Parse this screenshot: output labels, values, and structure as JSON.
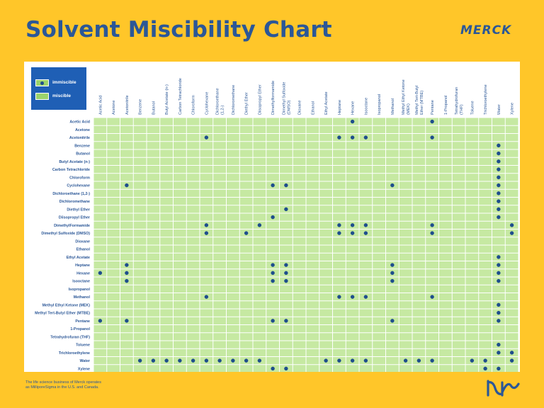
{
  "title": "Solvent Miscibility Chart",
  "brand": "Merck",
  "legend": {
    "immiscible": "immiscible",
    "miscible": "miscible"
  },
  "footer": "The life science business of Merck operates as MilliporeSigma in the U.S. and Canada.",
  "colors": {
    "background": "#FFC629",
    "title": "#2B5797",
    "cell": "#C6E9A2",
    "dot": "#1E4E8C",
    "legend_box": "#1F5FB5"
  },
  "chart_data": {
    "type": "heatmap",
    "columns": [
      "Acetic Acid",
      "Acetone",
      "Acetonitrile",
      "Benzene",
      "Butanol",
      "Butyl Acetate (n-)",
      "Carbon Tetrachloride",
      "Chloroform",
      "Cyclohexane",
      "Dichloroethane (1,2-)",
      "Dichloromethane",
      "Diethyl Ether",
      "Diisopropyl Ether",
      "Dimethylformamide",
      "Dimethyl Sulfoxide (DMSO)",
      "Dioxane",
      "Ethanol",
      "Ethyl Acetate",
      "Heptane",
      "Hexane",
      "Isooctane",
      "Isopropanol",
      "Methanol",
      "Methyl Ethyl Ketone (MEK)",
      "Methyl Tert-Butyl Ether (MTBE)",
      "Pentane",
      "1-Propanol",
      "Tetrahydrofuran (THF)",
      "Toluene",
      "Trichloroethylene",
      "Water",
      "Xylene"
    ],
    "rows": [
      "Acetic Acid",
      "Acetone",
      "Acetonitrile",
      "Benzene",
      "Butanol",
      "Butyl Acetate (n-)",
      "Carbon Tetrachloride",
      "Chloroform",
      "Cyclohexane",
      "Dichloroethane (1,2-)",
      "Dichloromethane",
      "Diethyl Ether",
      "Diisopropyl Ether",
      "DimethylFormamide",
      "Dimethyl Sulfoxide (DMSO)",
      "Dioxane",
      "Ethanol",
      "Ethyl Acetate",
      "Heptane",
      "Hexane",
      "Isooctane",
      "Isopropanol",
      "Methanol",
      "Methyl Ethyl Ketone (MEK)",
      "Methyl Tert-Butyl Ether (MTBE)",
      "Pentane",
      "1-Propanol",
      "Tetrahydrofuran (THF)",
      "Toluene",
      "Trichloroethylene",
      "Water",
      "Xylene"
    ],
    "values_legend": "1 = immiscible, 0 = miscible",
    "immiscible": [
      [
        0,
        19
      ],
      [
        0,
        25
      ],
      [
        2,
        8
      ],
      [
        2,
        18
      ],
      [
        2,
        19
      ],
      [
        2,
        20
      ],
      [
        2,
        25
      ],
      [
        3,
        30
      ],
      [
        4,
        30
      ],
      [
        5,
        30
      ],
      [
        6,
        30
      ],
      [
        7,
        30
      ],
      [
        8,
        2
      ],
      [
        8,
        13
      ],
      [
        8,
        14
      ],
      [
        8,
        22
      ],
      [
        8,
        30
      ],
      [
        9,
        30
      ],
      [
        10,
        30
      ],
      [
        11,
        14
      ],
      [
        11,
        30
      ],
      [
        12,
        13
      ],
      [
        12,
        30
      ],
      [
        13,
        8
      ],
      [
        13,
        12
      ],
      [
        13,
        18
      ],
      [
        13,
        19
      ],
      [
        13,
        20
      ],
      [
        13,
        25
      ],
      [
        13,
        31
      ],
      [
        14,
        8
      ],
      [
        14,
        11
      ],
      [
        14,
        18
      ],
      [
        14,
        19
      ],
      [
        14,
        20
      ],
      [
        14,
        25
      ],
      [
        14,
        31
      ],
      [
        17,
        30
      ],
      [
        18,
        2
      ],
      [
        18,
        13
      ],
      [
        18,
        14
      ],
      [
        18,
        22
      ],
      [
        18,
        30
      ],
      [
        19,
        0
      ],
      [
        19,
        2
      ],
      [
        19,
        13
      ],
      [
        19,
        14
      ],
      [
        19,
        22
      ],
      [
        19,
        30
      ],
      [
        20,
        2
      ],
      [
        20,
        13
      ],
      [
        20,
        14
      ],
      [
        20,
        22
      ],
      [
        20,
        30
      ],
      [
        22,
        8
      ],
      [
        22,
        18
      ],
      [
        22,
        19
      ],
      [
        22,
        20
      ],
      [
        22,
        25
      ],
      [
        23,
        30
      ],
      [
        24,
        30
      ],
      [
        25,
        0
      ],
      [
        25,
        2
      ],
      [
        25,
        13
      ],
      [
        25,
        14
      ],
      [
        25,
        22
      ],
      [
        25,
        30
      ],
      [
        28,
        30
      ],
      [
        29,
        30
      ],
      [
        29,
        31
      ],
      [
        30,
        3
      ],
      [
        30,
        4
      ],
      [
        30,
        5
      ],
      [
        30,
        6
      ],
      [
        30,
        7
      ],
      [
        30,
        8
      ],
      [
        30,
        9
      ],
      [
        30,
        10
      ],
      [
        30,
        11
      ],
      [
        30,
        12
      ],
      [
        30,
        17
      ],
      [
        30,
        18
      ],
      [
        30,
        19
      ],
      [
        30,
        20
      ],
      [
        30,
        23
      ],
      [
        30,
        24
      ],
      [
        30,
        25
      ],
      [
        30,
        28
      ],
      [
        30,
        29
      ],
      [
        30,
        31
      ],
      [
        31,
        13
      ],
      [
        31,
        14
      ],
      [
        31,
        29
      ],
      [
        31,
        30
      ]
    ]
  }
}
